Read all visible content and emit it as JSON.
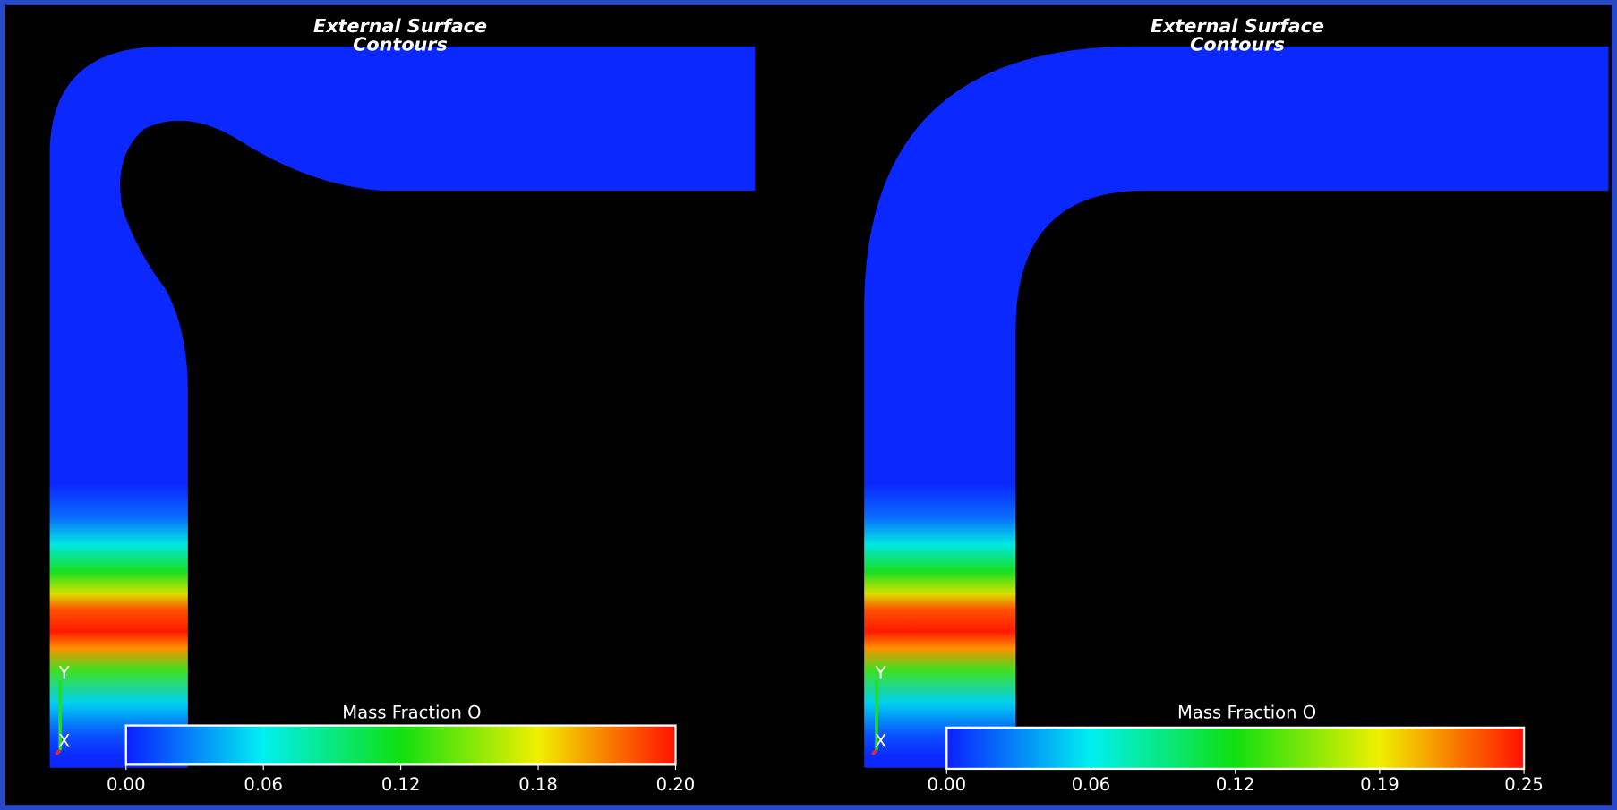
{
  "panels": [
    {
      "title": "External Surface",
      "subtitle": "Contours",
      "colorbar": {
        "label": "Mass Fraction O",
        "ticks": [
          "0.00",
          "0.06",
          "0.12",
          "0.18",
          "0.20"
        ]
      },
      "axes": {
        "y": "Y",
        "x": "X"
      }
    },
    {
      "title": "External Surface",
      "subtitle": "Contours",
      "colorbar": {
        "label": "Mass Fraction O",
        "ticks": [
          "0.00",
          "0.06",
          "0.12",
          "0.19",
          "0.25"
        ]
      },
      "axes": {
        "y": "Y",
        "x": "X"
      }
    }
  ]
}
